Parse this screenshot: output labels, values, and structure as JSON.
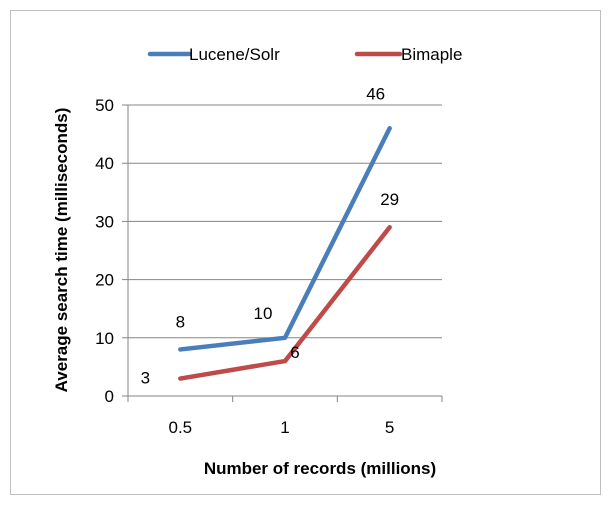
{
  "chart_data": {
    "type": "line",
    "categories": [
      "0.5",
      "1",
      "5"
    ],
    "series": [
      {
        "name": "Lucene/Solr",
        "values": [
          8,
          10,
          46
        ],
        "color": "#4a7ebb"
      },
      {
        "name": "Bimaple",
        "values": [
          3,
          6,
          29
        ],
        "color": "#be4b48"
      }
    ],
    "xlabel": "Number of records (millions)",
    "ylabel": "Average search time (milliseconds)",
    "ylim": [
      0,
      50
    ],
    "yticks": [
      "0",
      "10",
      "20",
      "30",
      "40",
      "50"
    ],
    "grid": true,
    "legend_position": "top"
  }
}
